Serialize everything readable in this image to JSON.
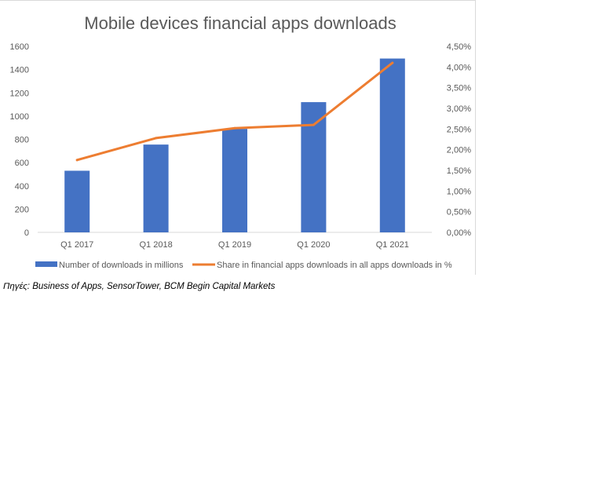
{
  "chart_data": {
    "type": "bar+line",
    "title": "Mobile devices financial apps downloads",
    "categories": [
      "Q1 2017",
      "Q1 2018",
      "Q1 2019",
      "Q1 2020",
      "Q1 2021"
    ],
    "series": [
      {
        "name": "Number of downloads in millions",
        "type": "bar",
        "axis": "left",
        "color": "#4472c4",
        "values": [
          530,
          755,
          890,
          1120,
          1495
        ]
      },
      {
        "name": "Share in financial apps downloads in all apps downloads in %",
        "type": "line",
        "axis": "right",
        "color": "#ed7d31",
        "values": [
          1.75,
          2.28,
          2.52,
          2.6,
          4.1
        ]
      }
    ],
    "y_left": {
      "min": 0,
      "max": 1600,
      "ticks": [
        "0",
        "200",
        "400",
        "600",
        "800",
        "1000",
        "1200",
        "1400",
        "1600"
      ]
    },
    "y_right": {
      "min": 0,
      "max": 4.5,
      "ticks": [
        "0,00%",
        "0,50%",
        "1,00%",
        "1,50%",
        "2,00%",
        "2,50%",
        "3,00%",
        "3,50%",
        "4,00%",
        "4,50%"
      ]
    },
    "grid": false,
    "legend_position": "bottom"
  },
  "source_note": "Πηγές: Business of Apps, SensorTower,  BCM Begin Capital Markets"
}
